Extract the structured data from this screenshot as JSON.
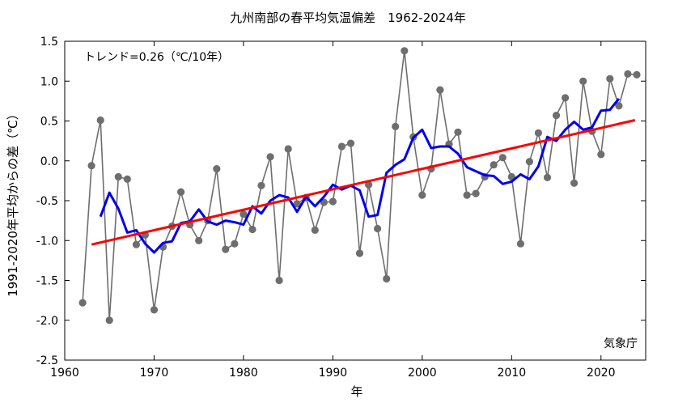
{
  "chart_data": {
    "type": "line",
    "title": "九州南部の春平均気温偏差　1962-2024年",
    "xlabel": "年",
    "ylabel": "1991-2020年平均からの差（℃）",
    "trend_label": "トレンド=0.26（℃/10年）",
    "source_label": "気象庁",
    "xlim": [
      1960,
      2025
    ],
    "ylim": [
      -2.5,
      1.5
    ],
    "x_ticks": [
      1960,
      1970,
      1980,
      1990,
      2000,
      2010,
      2020
    ],
    "x_tick_labels": [
      "1960",
      "1970",
      "1980",
      "1990",
      "2000",
      "2010",
      "2020"
    ],
    "y_ticks": [
      -2.5,
      -2.0,
      -1.5,
      -1.0,
      -0.5,
      0.0,
      0.5,
      1.0,
      1.5
    ],
    "y_tick_labels": [
      "-2.5",
      "-2.0",
      "-1.5",
      "-1.0",
      "-0.5",
      "0.0",
      "0.5",
      "1.0",
      "1.5"
    ],
    "grid": false,
    "legend": "none",
    "series": [
      {
        "role": "annual",
        "color": "#6e6e6e",
        "marker": "circle",
        "x": [
          1962,
          1963,
          1964,
          1965,
          1966,
          1967,
          1968,
          1969,
          1970,
          1971,
          1972,
          1973,
          1974,
          1975,
          1976,
          1977,
          1978,
          1979,
          1980,
          1981,
          1982,
          1983,
          1984,
          1985,
          1986,
          1987,
          1988,
          1989,
          1990,
          1991,
          1992,
          1993,
          1994,
          1995,
          1996,
          1997,
          1998,
          1999,
          2000,
          2001,
          2002,
          2003,
          2004,
          2005,
          2006,
          2007,
          2008,
          2009,
          2010,
          2011,
          2012,
          2013,
          2014,
          2015,
          2016,
          2017,
          2018,
          2019,
          2020,
          2021,
          2022,
          2023,
          2024
        ],
        "y": [
          -1.78,
          -0.06,
          0.51,
          -2.0,
          -0.2,
          -0.23,
          -1.05,
          -0.93,
          -1.87,
          -1.08,
          -0.82,
          -0.39,
          -0.8,
          -1.0,
          -0.75,
          -0.1,
          -1.11,
          -1.04,
          -0.67,
          -0.86,
          -0.31,
          0.05,
          -1.5,
          0.15,
          -0.54,
          -0.46,
          -0.87,
          -0.52,
          -0.51,
          0.18,
          0.22,
          -1.16,
          -0.3,
          -0.85,
          -1.48,
          0.43,
          1.38,
          0.3,
          -0.43,
          -0.1,
          0.89,
          0.21,
          0.36,
          -0.43,
          -0.41,
          -0.2,
          -0.05,
          0.04,
          -0.2,
          -1.04,
          -0.01,
          0.35,
          -0.21,
          0.57,
          0.79,
          -0.28,
          1.0,
          0.37,
          0.08,
          1.03,
          0.69,
          1.09,
          1.08
        ]
      },
      {
        "role": "5-year running mean",
        "color": "#0000ee",
        "x": [
          1964,
          1965,
          1966,
          1967,
          1968,
          1969,
          1970,
          1971,
          1972,
          1973,
          1974,
          1975,
          1976,
          1977,
          1978,
          1979,
          1980,
          1981,
          1982,
          1983,
          1984,
          1985,
          1986,
          1987,
          1988,
          1989,
          1990,
          1991,
          1992,
          1993,
          1994,
          1995,
          1996,
          1997,
          1998,
          1999,
          2000,
          2001,
          2002,
          2003,
          2004,
          2005,
          2006,
          2007,
          2008,
          2009,
          2010,
          2011,
          2012,
          2013,
          2014,
          2015,
          2016,
          2017,
          2018,
          2019,
          2020,
          2021,
          2022
        ],
        "y": [
          -0.7,
          -0.4,
          -0.6,
          -0.9,
          -0.87,
          -1.04,
          -1.15,
          -1.03,
          -1.01,
          -0.78,
          -0.76,
          -0.61,
          -0.76,
          -0.8,
          -0.75,
          -0.77,
          -0.8,
          -0.57,
          -0.66,
          -0.5,
          -0.43,
          -0.46,
          -0.64,
          -0.45,
          -0.57,
          -0.45,
          -0.3,
          -0.36,
          -0.31,
          -0.37,
          -0.7,
          -0.68,
          -0.15,
          -0.05,
          0.02,
          0.29,
          0.39,
          0.16,
          0.18,
          0.18,
          0.09,
          -0.08,
          -0.13,
          -0.18,
          -0.19,
          -0.29,
          -0.26,
          -0.17,
          -0.23,
          -0.07,
          0.3,
          0.25,
          0.39,
          0.49,
          0.39,
          0.42,
          0.63,
          0.64,
          0.78
        ]
      },
      {
        "role": "trend",
        "color": "#ff0000",
        "x": [
          1963,
          2023.8
        ],
        "y": [
          -1.05,
          0.51
        ]
      }
    ]
  }
}
